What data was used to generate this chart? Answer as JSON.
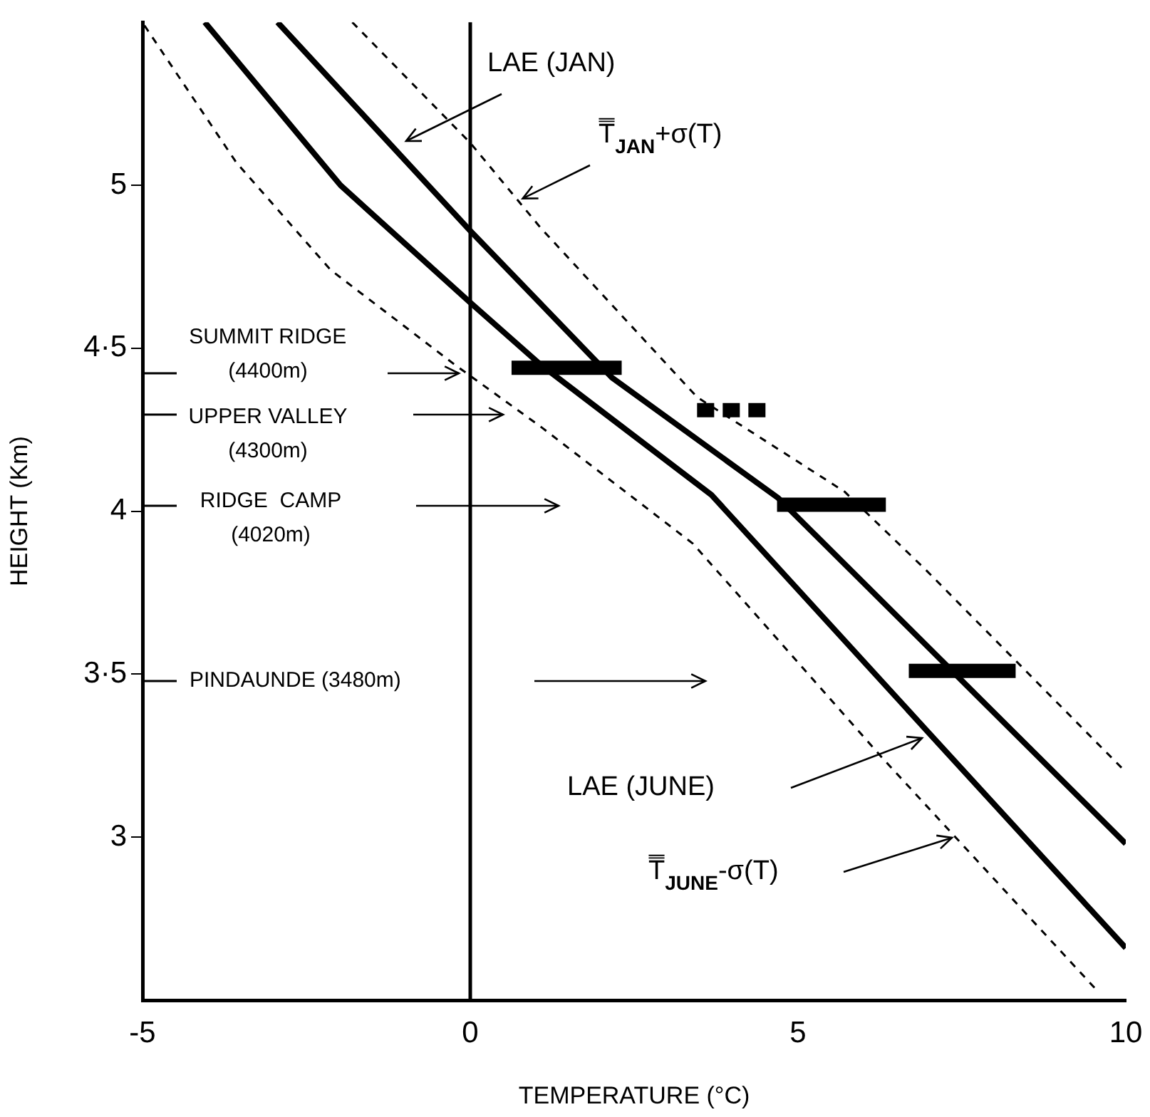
{
  "chart_data": {
    "type": "line",
    "xlabel": "TEMPERATURE (°C)",
    "ylabel": "HEIGHT (Km)",
    "xlim": [
      -5,
      10
    ],
    "ylim": [
      2.5,
      5.5
    ],
    "xticks": [
      -5,
      0,
      5,
      10
    ],
    "yticks": [
      3,
      {
        "value": 3.5,
        "label": "3·5"
      },
      4,
      {
        "value": 4.5,
        "label": "4·5"
      },
      5
    ],
    "grid": false,
    "legend": false,
    "marker": "none",
    "series": [
      {
        "x": [
          -2.94,
          0,
          2.16,
          4.7,
          10
        ],
        "values": [
          5.5,
          4.86,
          4.41,
          4.04,
          2.98
        ],
        "color": "#000000",
        "line_style": "solid"
      },
      {
        "x": [
          -4.05,
          -1.98,
          0,
          1.07,
          3.68,
          6.95,
          10
        ],
        "values": [
          5.5,
          5.0,
          4.64,
          4.45,
          4.05,
          3.33,
          2.66
        ],
        "color": "#000000",
        "line_style": "solid"
      },
      {
        "x": [
          -1.8,
          0,
          1.07,
          3.46,
          5.71,
          6.95,
          10
        ],
        "values": [
          5.5,
          5.13,
          4.87,
          4.35,
          4.06,
          3.82,
          3.2
        ],
        "color": "#000000",
        "line_style": "dashed"
      },
      {
        "x": [
          -4.97,
          -3.57,
          -2.13,
          -0.24,
          1.07,
          3.4,
          6.3,
          9.56
        ],
        "values": [
          5.49,
          5.07,
          4.74,
          4.45,
          4.26,
          3.9,
          3.24,
          2.53
        ],
        "color": "#000000",
        "line_style": "dashed"
      },
      {
        "x": [
          0.63,
          2.31
        ],
        "values": [
          4.44,
          4.44
        ],
        "color": "#000000",
        "line_style": "solid"
      },
      {
        "x": [
          3.46,
          4.62
        ],
        "values": [
          4.31,
          4.31
        ],
        "color": "#000000",
        "line_style": "dashed"
      },
      {
        "x": [
          4.68,
          6.34
        ],
        "values": [
          4.02,
          4.02
        ],
        "color": "#000000",
        "line_style": "solid"
      },
      {
        "x": [
          6.69,
          8.32
        ],
        "values": [
          3.51,
          3.51
        ],
        "color": "#000000",
        "line_style": "solid"
      }
    ],
    "ref_lines": [
      {
        "axis": "x",
        "value": 0,
        "color": "#000000"
      }
    ],
    "annotations": [
      "LAE (JAN)",
      {
        "text": "T̿$_{JAN}$+σ(T)",
        "x": 0.8,
        "y": 4.95
      },
      "SUMMIT RIDGE\n(4400m)",
      "UPPER VALLEY\n(4300m)",
      "RIDGE  CAMP\n(4020m)",
      "PINDAUNDE (3480m)",
      "LAE (JUNE)",
      "T̿$_{JUNE}$-σ(T)"
    ]
  }
}
